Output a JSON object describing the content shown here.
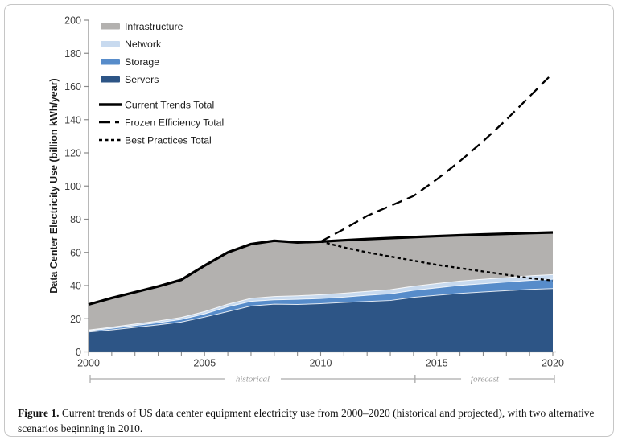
{
  "figure": {
    "caption_label": "Figure 1.",
    "caption_text": " Current trends of US data center equipment electricity use from 2000–2020 (historical and projected), with two alternative scenarios beginning in 2010."
  },
  "chart_data": {
    "type": "area",
    "title": "",
    "xlabel": "",
    "ylabel": "Data Center Electricity Use (billion kWh/year)",
    "x": [
      2000,
      2001,
      2002,
      2003,
      2004,
      2005,
      2006,
      2007,
      2008,
      2009,
      2010,
      2011,
      2012,
      2013,
      2014,
      2015,
      2016,
      2017,
      2018,
      2019,
      2020
    ],
    "xticks": [
      2000,
      2005,
      2010,
      2015,
      2020
    ],
    "ylim": [
      0,
      200
    ],
    "ytick_step": 20,
    "grid": false,
    "legend_position": "top-left-inside",
    "stacked_series": [
      {
        "name": "Servers",
        "color": "#2d5586",
        "values": [
          12,
          13.3,
          14.8,
          16.3,
          18,
          21,
          24.3,
          27.7,
          28.8,
          28.6,
          29.1,
          29.8,
          30.4,
          31,
          32.9,
          34.1,
          35.3,
          36.1,
          36.9,
          37.7,
          38.2
        ]
      },
      {
        "name": "Storage",
        "color": "#578cca",
        "values": [
          0.7,
          0.9,
          1.1,
          1.3,
          1.6,
          1.9,
          2.9,
          2.8,
          2.6,
          3.1,
          3.1,
          3.2,
          3.7,
          4,
          4.2,
          4.5,
          4.8,
          5,
          5.2,
          5.4,
          5.6
        ]
      },
      {
        "name": "Network",
        "color": "#c8daef",
        "values": [
          0.5,
          0.7,
          0.9,
          1,
          1.2,
          1.4,
          1.6,
          1.8,
          2,
          2.1,
          2.3,
          2.4,
          2.4,
          2.5,
          2.5,
          2.6,
          2.6,
          2.7,
          2.7,
          2.8,
          2.8
        ]
      },
      {
        "name": "Infrastructure",
        "color": "#b3b1af",
        "values": [
          15.4,
          17.6,
          19.2,
          20.9,
          22.7,
          27.7,
          31.2,
          32.7,
          33.6,
          32.2,
          32,
          31.9,
          31.5,
          31.1,
          29.6,
          28.6,
          27.6,
          27,
          26.4,
          25.7,
          25.4
        ]
      }
    ],
    "line_series": [
      {
        "name": "Current Trends Total",
        "style": "solid",
        "color": "#000000",
        "x_start": 2000,
        "values": [
          28.6,
          32.5,
          36,
          39.5,
          43.5,
          52,
          60,
          65,
          67,
          66,
          66.5,
          67.3,
          68,
          68.6,
          69.2,
          69.8,
          70.3,
          70.8,
          71.2,
          71.6,
          72
        ]
      },
      {
        "name": "Frozen Efficiency Total",
        "style": "long-dash",
        "color": "#000000",
        "x_start": 2010,
        "values": [
          66.5,
          74,
          82,
          88,
          94,
          104,
          115,
          127,
          140,
          154,
          168
        ]
      },
      {
        "name": "Best Practices Total",
        "style": "short-dash",
        "color": "#000000",
        "x_start": 2010,
        "values": [
          66.5,
          63,
          60,
          57.5,
          55,
          52.5,
          50.5,
          48.5,
          46.5,
          44.5,
          43
        ]
      }
    ],
    "annotations": [
      {
        "label": "historical",
        "x_start": 2000,
        "x_end": 2014
      },
      {
        "label": "forecast",
        "x_start": 2014,
        "x_end": 2020
      }
    ],
    "colors": {
      "axis": "#8a8a8a",
      "tick_label": "#3d3d3d",
      "bracket": "#aaaaaa",
      "bracket_text": "#9b9b9b",
      "line": "#000000"
    }
  }
}
